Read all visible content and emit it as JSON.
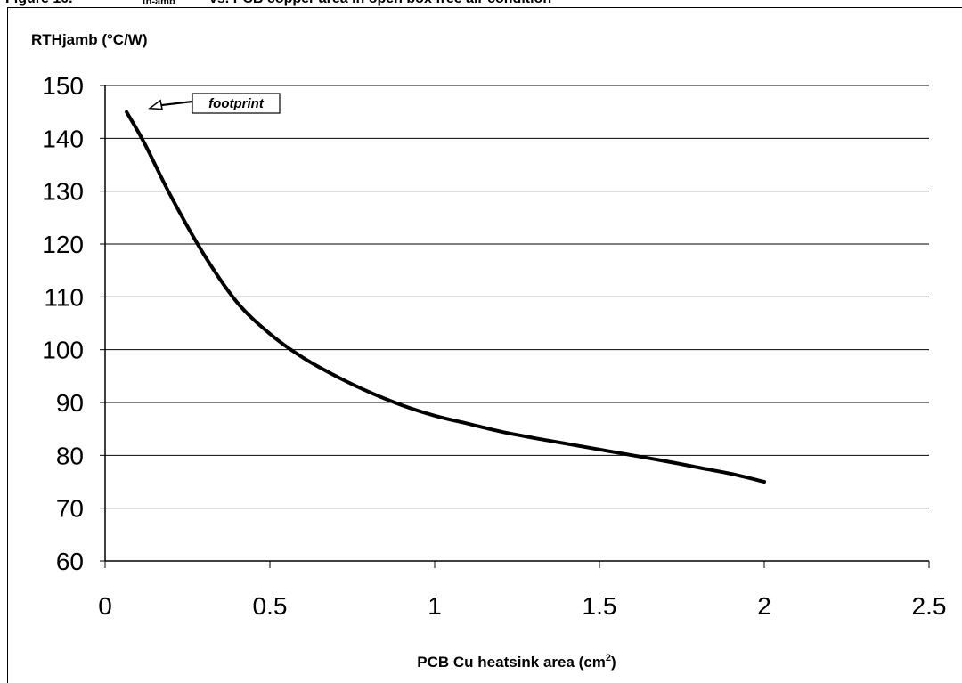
{
  "caption_fragment": {
    "part_a": "Figure 10.",
    "part_b": "th-amb",
    "part_c": "vs. PCB copper area in open box free air condition"
  },
  "chart_data": {
    "type": "line",
    "ylabel": "RTHjamb (°C/W)",
    "xlabel_main": "PCB Cu heatsink area (cm",
    "xlabel_sup": "2",
    "xlabel_end": ")",
    "xlim": [
      0,
      2.5
    ],
    "ylim": [
      60,
      150
    ],
    "x_ticks": [
      "0",
      "0.5",
      "1",
      "1.5",
      "2",
      "2.5"
    ],
    "y_ticks": [
      "60",
      "70",
      "80",
      "90",
      "100",
      "110",
      "120",
      "130",
      "140",
      "150"
    ],
    "grid": "horizontal",
    "series": [
      {
        "x": [
          0.065,
          0.12,
          0.2,
          0.3,
          0.4,
          0.5,
          0.6,
          0.7,
          0.8,
          0.9,
          1.0,
          1.1,
          1.2,
          1.3,
          1.4,
          1.5,
          1.6,
          1.7,
          1.8,
          1.9,
          2.0
        ],
        "y": [
          145,
          139,
          129,
          118,
          109,
          103,
          98.5,
          95,
          92,
          89.5,
          87.5,
          86,
          84.5,
          83.3,
          82.2,
          81.1,
          80,
          78.9,
          77.7,
          76.5,
          75
        ]
      }
    ],
    "annotation": {
      "text": "footprint",
      "x": 0.065,
      "y": 145
    }
  }
}
